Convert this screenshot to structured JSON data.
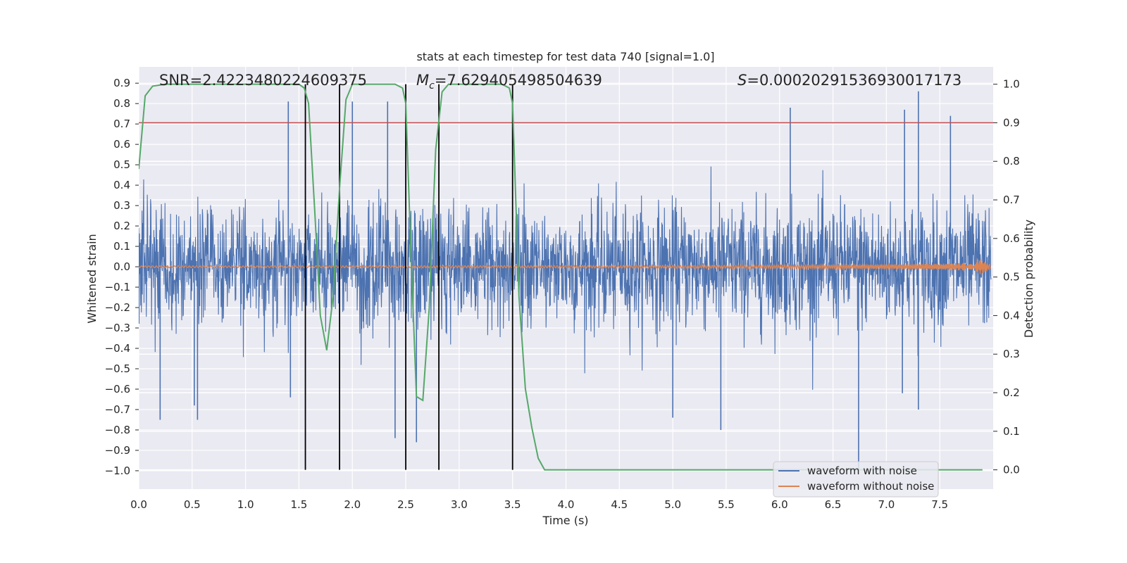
{
  "chart_data": {
    "type": "line",
    "title": "stats at each timestep for test data 740 [signal=1.0]",
    "xlabel": "Time (s)",
    "ylabel": "Whitened strain",
    "y2label": "Detection probability",
    "xlim": [
      0.0,
      8.0
    ],
    "ylim": [
      -1.09,
      0.98
    ],
    "y2lim": [
      -0.05,
      1.045
    ],
    "xticks": [
      "0.0",
      "0.5",
      "1.0",
      "1.5",
      "2.0",
      "2.5",
      "3.0",
      "3.5",
      "4.0",
      "4.5",
      "5.0",
      "5.5",
      "6.0",
      "6.5",
      "7.0",
      "7.5"
    ],
    "yticks": [
      "0.9",
      "0.8",
      "0.7",
      "0.6",
      "0.5",
      "0.4",
      "0.3",
      "0.2",
      "0.1",
      "0.0",
      "−0.1",
      "−0.2",
      "−0.3",
      "−0.4",
      "−0.5",
      "−0.6",
      "−0.7",
      "−0.8",
      "−0.9",
      "−1.0"
    ],
    "y2ticks": [
      "1.0",
      "0.9",
      "0.8",
      "0.7",
      "0.6",
      "0.5",
      "0.4",
      "0.3",
      "0.2",
      "0.1",
      "0.0"
    ],
    "grid": true,
    "legend_position": "lower-right",
    "annotations": {
      "snr": "SNR=2.4223480224609375",
      "mc_symbol": "M",
      "mc_sub": "c",
      "mc_value": "=7.629405498504639",
      "s_symbol": "S",
      "s_value": "=0.00020291536930017173"
    },
    "threshold": 0.9,
    "detection_markers_s": [
      1.56,
      1.88,
      2.5,
      2.81,
      3.5
    ],
    "series": [
      {
        "name": "waveform with noise",
        "color": "#4c72b0",
        "description_values": "dense noise band about ±0.3 with spikes up to 0.85 and down to −1.0",
        "spikes": [
          [
            1.4,
            0.81
          ],
          [
            2.0,
            0.81
          ],
          [
            2.33,
            0.81
          ],
          [
            6.1,
            0.78
          ],
          [
            7.17,
            0.77
          ],
          [
            7.3,
            0.86
          ],
          [
            7.6,
            0.74
          ],
          [
            0.2,
            -0.75
          ],
          [
            0.52,
            -0.68
          ],
          [
            0.55,
            -0.75
          ],
          [
            1.42,
            -0.64
          ],
          [
            2.4,
            -0.84
          ],
          [
            2.6,
            -0.86
          ],
          [
            5.0,
            -0.74
          ],
          [
            5.45,
            -0.8
          ],
          [
            6.74,
            -1.0
          ],
          [
            7.15,
            -0.62
          ],
          [
            7.3,
            -0.7
          ]
        ]
      },
      {
        "name": "waveform without noise",
        "color": "#dd8452",
        "description_values": "chirp amplitude ~0.005 rising to ~0.07 at t≈7.9 s"
      },
      {
        "name": "Detection probability",
        "color": "#55a868",
        "axis": "right",
        "x": [
          0.0,
          0.06,
          0.13,
          0.25,
          1.5,
          1.55,
          1.59,
          1.65,
          1.7,
          1.76,
          1.82,
          1.88,
          1.94,
          2.0,
          2.4,
          2.47,
          2.5,
          2.55,
          2.6,
          2.66,
          2.72,
          2.78,
          2.84,
          2.9,
          2.96,
          3.4,
          3.47,
          3.5,
          3.56,
          3.62,
          3.68,
          3.74,
          3.8,
          3.86,
          7.9
        ],
        "y": [
          0.78,
          0.97,
          0.995,
          1.0,
          1.0,
          0.99,
          0.95,
          0.66,
          0.4,
          0.31,
          0.45,
          0.73,
          0.96,
          1.0,
          1.0,
          0.99,
          0.95,
          0.55,
          0.19,
          0.18,
          0.42,
          0.83,
          0.98,
          1.0,
          1.0,
          1.0,
          0.99,
          0.95,
          0.45,
          0.21,
          0.11,
          0.03,
          0.0,
          0.0,
          0.0
        ]
      }
    ]
  }
}
